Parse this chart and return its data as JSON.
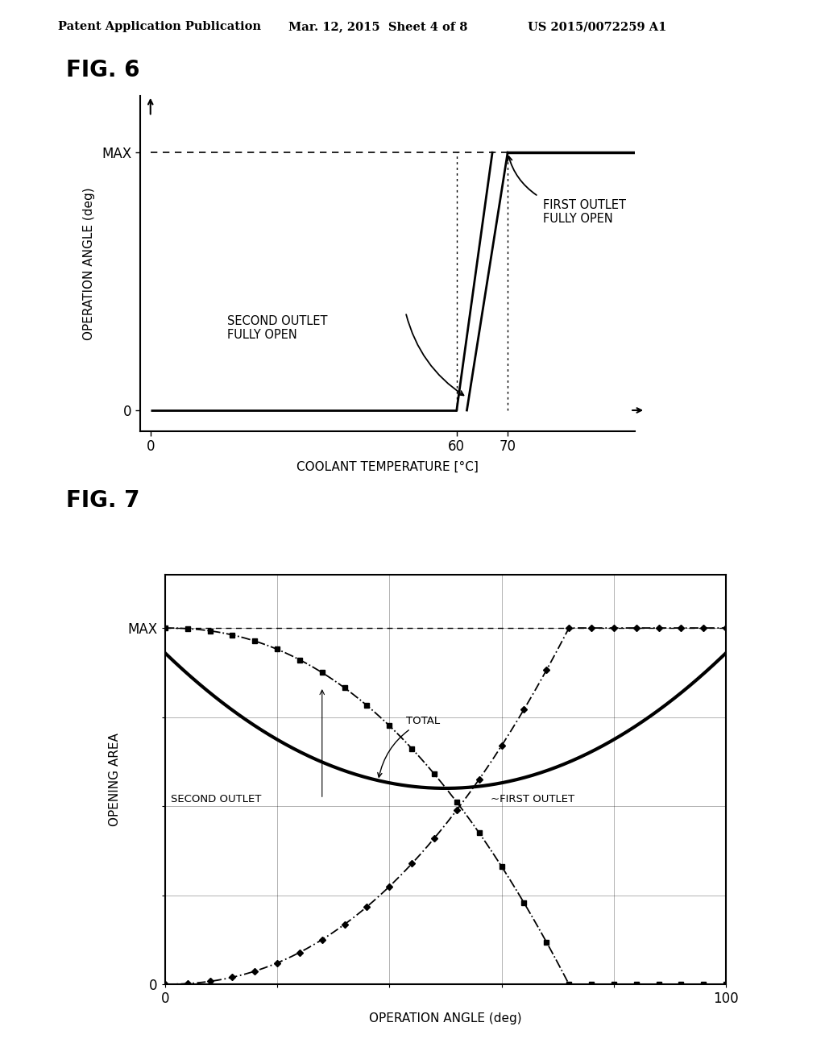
{
  "header_left": "Patent Application Publication",
  "header_mid": "Mar. 12, 2015  Sheet 4 of 8",
  "header_right": "US 2015/0072259 A1",
  "fig6_title": "FIG. 6",
  "fig6_xlabel": "COOLANT TEMPERATURE [°C]",
  "fig6_ylabel": "OPERATION ANGLE (deg)",
  "fig6_ann1_text": "FIRST OUTLET\nFULLY OPEN",
  "fig6_ann2_text": "SECOND OUTLET\nFULLY OPEN",
  "fig7_title": "FIG. 7",
  "fig7_xlabel": "OPERATION ANGLE (deg)",
  "fig7_ylabel": "OPENING AREA",
  "background_color": "#ffffff",
  "line_color": "#000000"
}
